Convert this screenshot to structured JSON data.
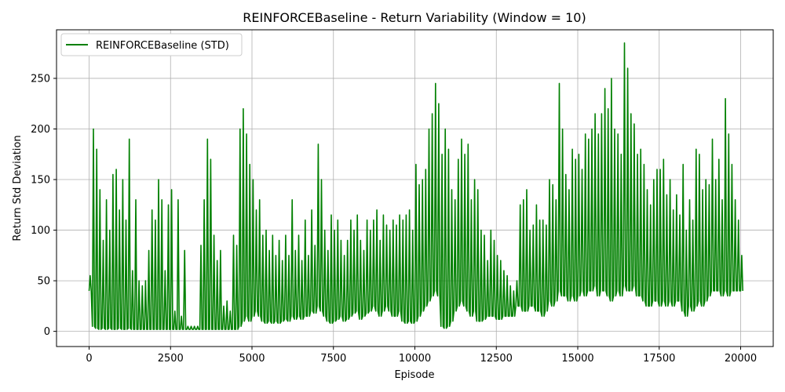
{
  "chart_data": {
    "type": "line",
    "title": "REINFORCEBaseline - Return Variability (Window = 10)",
    "xlabel": "Episode",
    "ylabel": "Return Std Deviation",
    "xlim": [
      -1000,
      21000
    ],
    "ylim": [
      -15,
      298
    ],
    "xticks": [
      0,
      2500,
      5000,
      7500,
      10000,
      12500,
      15000,
      17500,
      20000
    ],
    "xtick_labels": [
      "0",
      "2500",
      "5000",
      "7500",
      "10000",
      "12500",
      "15000",
      "17500",
      "20000"
    ],
    "yticks": [
      0,
      50,
      100,
      150,
      200,
      250
    ],
    "ytick_labels": [
      "0",
      "50",
      "100",
      "150",
      "200",
      "250"
    ],
    "grid": true,
    "legend": {
      "placement": "top-left",
      "entries": [
        "REINFORCEBaseline (STD)"
      ]
    },
    "series": [
      {
        "name": "REINFORCEBaseline (STD)",
        "color": "#008000",
        "x": [
          0,
          100,
          200,
          300,
          400,
          500,
          600,
          700,
          800,
          900,
          1000,
          1100,
          1200,
          1300,
          1400,
          1500,
          1600,
          1700,
          1800,
          1900,
          2000,
          2100,
          2200,
          2300,
          2400,
          2500,
          2600,
          2700,
          2800,
          2900,
          3000,
          3100,
          3200,
          3300,
          3400,
          3500,
          3600,
          3700,
          3800,
          3900,
          4000,
          4100,
          4200,
          4300,
          4400,
          4500,
          4600,
          4700,
          4800,
          4900,
          5000,
          5100,
          5200,
          5300,
          5400,
          5500,
          5600,
          5700,
          5800,
          5900,
          6000,
          6100,
          6200,
          6300,
          6400,
          6500,
          6600,
          6700,
          6800,
          6900,
          7000,
          7100,
          7200,
          7300,
          7400,
          7500,
          7600,
          7700,
          7800,
          7900,
          8000,
          8100,
          8200,
          8300,
          8400,
          8500,
          8600,
          8700,
          8800,
          8900,
          9000,
          9100,
          9200,
          9300,
          9400,
          9500,
          9600,
          9700,
          9800,
          9900,
          10000,
          10100,
          10200,
          10300,
          10400,
          10500,
          10600,
          10700,
          10800,
          10900,
          11000,
          11100,
          11200,
          11300,
          11400,
          11500,
          11600,
          11700,
          11800,
          11900,
          12000,
          12100,
          12200,
          12300,
          12400,
          12500,
          12600,
          12700,
          12800,
          12900,
          13000,
          13100,
          13200,
          13300,
          13400,
          13500,
          13600,
          13700,
          13800,
          13900,
          14000,
          14100,
          14200,
          14300,
          14400,
          14500,
          14600,
          14700,
          14800,
          14900,
          15000,
          15100,
          15200,
          15300,
          15400,
          15500,
          15600,
          15700,
          15800,
          15900,
          16000,
          16100,
          16200,
          16300,
          16400,
          16500,
          16600,
          16700,
          16800,
          16900,
          17000,
          17100,
          17200,
          17300,
          17400,
          17500,
          17600,
          17700,
          17800,
          17900,
          18000,
          18100,
          18200,
          18300,
          18400,
          18500,
          18600,
          18700,
          18800,
          18900,
          19000,
          19100,
          19200,
          19300,
          19400,
          19500,
          19600,
          19700,
          19800,
          19900,
          20000
        ],
        "high": [
          55,
          200,
          180,
          140,
          90,
          130,
          100,
          155,
          160,
          120,
          150,
          110,
          190,
          60,
          130,
          50,
          45,
          50,
          80,
          120,
          110,
          150,
          130,
          60,
          125,
          140,
          20,
          130,
          15,
          80,
          5,
          5,
          5,
          5,
          85,
          130,
          190,
          170,
          95,
          70,
          80,
          25,
          30,
          20,
          95,
          85,
          200,
          220,
          195,
          165,
          150,
          120,
          130,
          95,
          100,
          80,
          95,
          75,
          90,
          70,
          95,
          75,
          130,
          80,
          95,
          70,
          110,
          75,
          120,
          85,
          185,
          150,
          100,
          80,
          115,
          100,
          110,
          90,
          75,
          90,
          110,
          100,
          115,
          90,
          80,
          110,
          100,
          110,
          120,
          90,
          115,
          105,
          100,
          110,
          105,
          115,
          110,
          115,
          120,
          100,
          165,
          145,
          150,
          160,
          200,
          215,
          245,
          225,
          175,
          200,
          180,
          140,
          130,
          170,
          190,
          175,
          185,
          130,
          150,
          140,
          100,
          95,
          70,
          100,
          90,
          75,
          70,
          60,
          55,
          45,
          40,
          50,
          125,
          130,
          140,
          100,
          105,
          125,
          110,
          110,
          105,
          150,
          145,
          130,
          245,
          200,
          155,
          140,
          180,
          170,
          175,
          160,
          195,
          190,
          200,
          215,
          195,
          215,
          240,
          220,
          250,
          200,
          195,
          175,
          285,
          260,
          215,
          205,
          175,
          180,
          165,
          140,
          125,
          150,
          160,
          160,
          170,
          135,
          150,
          120,
          135,
          115,
          165,
          100,
          130,
          110,
          180,
          175,
          140,
          150,
          145,
          190,
          150,
          170,
          130,
          230,
          195,
          165,
          130,
          110,
          75
        ],
        "low": [
          40,
          5,
          3,
          2,
          3,
          2,
          3,
          2,
          2,
          3,
          2,
          2,
          3,
          2,
          2,
          2,
          2,
          2,
          2,
          2,
          2,
          2,
          2,
          2,
          2,
          2,
          2,
          2,
          2,
          2,
          2,
          2,
          2,
          2,
          2,
          2,
          2,
          2,
          2,
          2,
          2,
          2,
          2,
          2,
          2,
          2,
          5,
          10,
          15,
          10,
          15,
          20,
          15,
          10,
          8,
          10,
          8,
          10,
          8,
          10,
          12,
          10,
          15,
          12,
          15,
          12,
          15,
          15,
          20,
          18,
          25,
          20,
          15,
          10,
          8,
          10,
          12,
          15,
          10,
          12,
          15,
          18,
          20,
          12,
          15,
          18,
          20,
          25,
          20,
          15,
          20,
          25,
          20,
          15,
          15,
          20,
          10,
          8,
          10,
          8,
          10,
          15,
          20,
          25,
          30,
          35,
          40,
          35,
          5,
          3,
          5,
          10,
          20,
          25,
          30,
          25,
          20,
          15,
          20,
          10,
          10,
          12,
          15,
          15,
          15,
          12,
          12,
          15,
          15,
          15,
          15,
          25,
          25,
          20,
          20,
          25,
          25,
          20,
          20,
          15,
          20,
          30,
          25,
          30,
          40,
          35,
          35,
          30,
          35,
          30,
          35,
          40,
          35,
          40,
          40,
          45,
          35,
          40,
          40,
          35,
          30,
          35,
          40,
          35,
          45,
          40,
          40,
          45,
          35,
          35,
          30,
          25,
          25,
          30,
          30,
          25,
          30,
          25,
          30,
          25,
          30,
          30,
          20,
          15,
          25,
          20,
          25,
          30,
          25,
          30,
          35,
          40,
          40,
          40,
          35,
          40,
          35,
          40,
          40,
          40,
          40
        ]
      }
    ]
  }
}
